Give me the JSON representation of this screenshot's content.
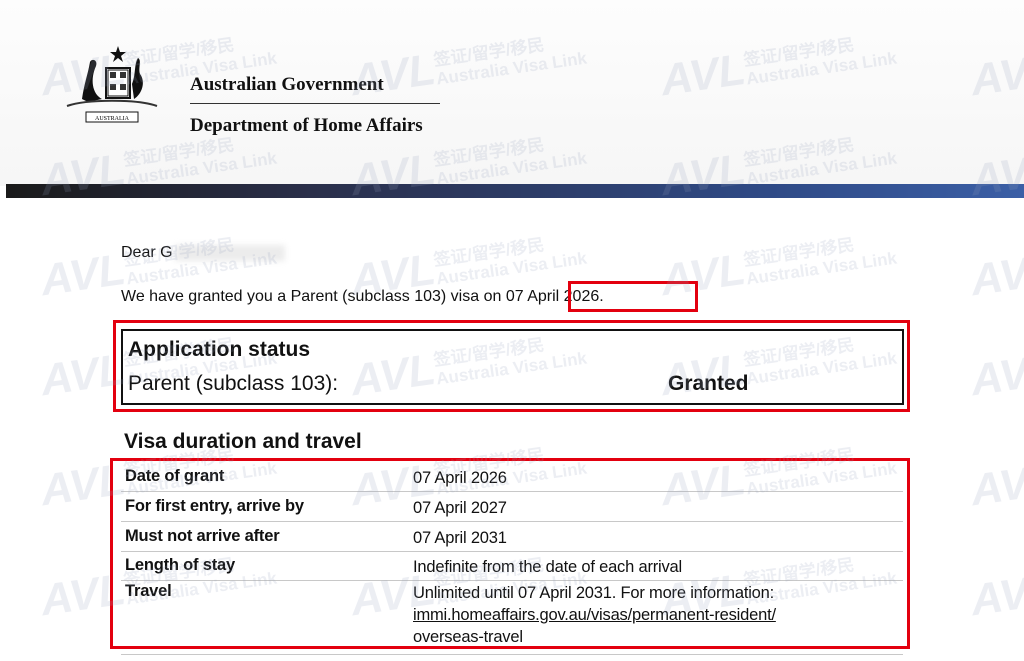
{
  "header": {
    "government": "Australian Government",
    "department": "Department of Home Affairs",
    "crest_text": "AUSTRALIA"
  },
  "letter": {
    "salutation": "Dear G",
    "grant_sentence": "We have granted you a Parent (subclass 103) visa on",
    "grant_date": "07 April 2026",
    "period": "."
  },
  "status": {
    "title": "Application status",
    "visa_label": "Parent (subclass 103):",
    "value": "Granted"
  },
  "duration": {
    "title": "Visa duration and travel",
    "rows": [
      {
        "label": "Date of grant",
        "value": "07 April 2026"
      },
      {
        "label": "For first entry, arrive by",
        "value": "07 April 2027"
      },
      {
        "label": "Must not arrive after",
        "value": "07 April 2031"
      },
      {
        "label": "Length of stay",
        "value": "Indefinite from the date of each arrival"
      },
      {
        "label": "Travel",
        "value": "Unlimited until 07 April 2031. For more information:",
        "link_line1": "immi.homeaffairs.gov.au/visas/permanent-resident/",
        "link_line2": "overseas-travel"
      }
    ]
  },
  "watermark": {
    "logo": "AVL",
    "cn": "签证/留学/移民",
    "en": "Australia Visa Link"
  },
  "colors": {
    "highlight": "#e3000f",
    "bar": "#2f4a86"
  }
}
